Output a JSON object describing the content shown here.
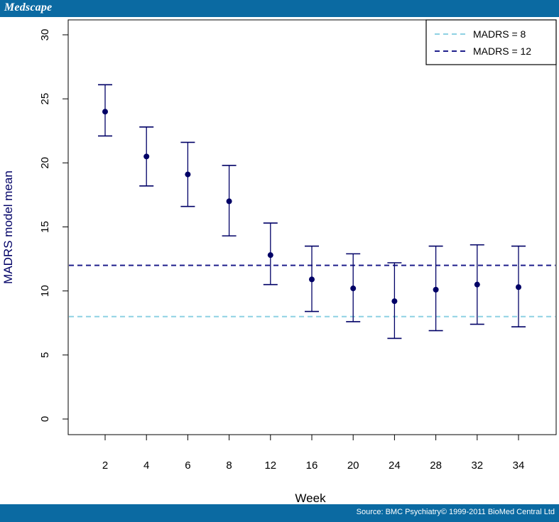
{
  "header": {
    "brand": "Medscape"
  },
  "footer": {
    "source": "Source: BMC Psychiatry© 1999-2011 BioMed Central Ltd"
  },
  "colors": {
    "bar": "#0B6AA2",
    "series": "#000066",
    "madrs8": "#8ED1E3",
    "madrs12": "#1F1F8C"
  },
  "chart_data": {
    "type": "scatter",
    "xlabel": "Week",
    "ylabel": "MADRS model mean",
    "ylim": [
      0,
      30
    ],
    "yticks": [
      "0",
      "5",
      "10",
      "15",
      "20",
      "25",
      "30"
    ],
    "categories": [
      "2",
      "4",
      "6",
      "8",
      "12",
      "16",
      "20",
      "24",
      "28",
      "32",
      "34"
    ],
    "values": [
      24.0,
      20.5,
      19.1,
      17.0,
      12.8,
      10.9,
      10.2,
      9.2,
      10.1,
      10.5,
      10.3
    ],
    "lower": [
      22.1,
      18.2,
      16.6,
      14.3,
      10.5,
      8.4,
      7.6,
      6.3,
      6.9,
      7.4,
      7.2
    ],
    "upper": [
      26.1,
      22.8,
      21.6,
      19.8,
      15.3,
      13.5,
      12.9,
      12.2,
      13.5,
      13.6,
      13.5
    ],
    "reference_lines": [
      {
        "name": "MADRS = 8",
        "value": 8,
        "color": "#8ED1E3"
      },
      {
        "name": "MADRS = 12",
        "value": 12,
        "color": "#1F1F8C"
      }
    ],
    "legend_position": "top-right",
    "grid": false
  }
}
